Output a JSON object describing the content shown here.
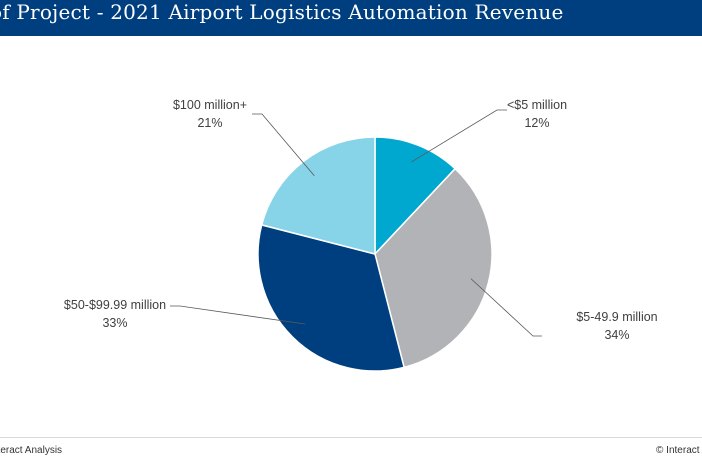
{
  "header": {
    "title": "of Project - 2021 Airport Logistics Automation Revenue"
  },
  "footer": {
    "left": "nteract Analysis",
    "right": "© Interact An"
  },
  "colors": {
    "title_bar": "#003f7f"
  },
  "chart_data": {
    "type": "pie",
    "title": "of Project - 2021 Airport Logistics Automation Revenue",
    "categories": [
      "<$5 million",
      "$5-49.9  million",
      "$50-$99.99  million",
      "$100 million+"
    ],
    "values": [
      12,
      34,
      33,
      21
    ],
    "value_labels": [
      "12%",
      "34%",
      "33%",
      "21%"
    ],
    "colors": [
      "#00a8cf",
      "#b1b3b6",
      "#003f7f",
      "#87d3e8"
    ],
    "start_angle": "12 o'clock",
    "direction": "clockwise",
    "legend": "none"
  }
}
